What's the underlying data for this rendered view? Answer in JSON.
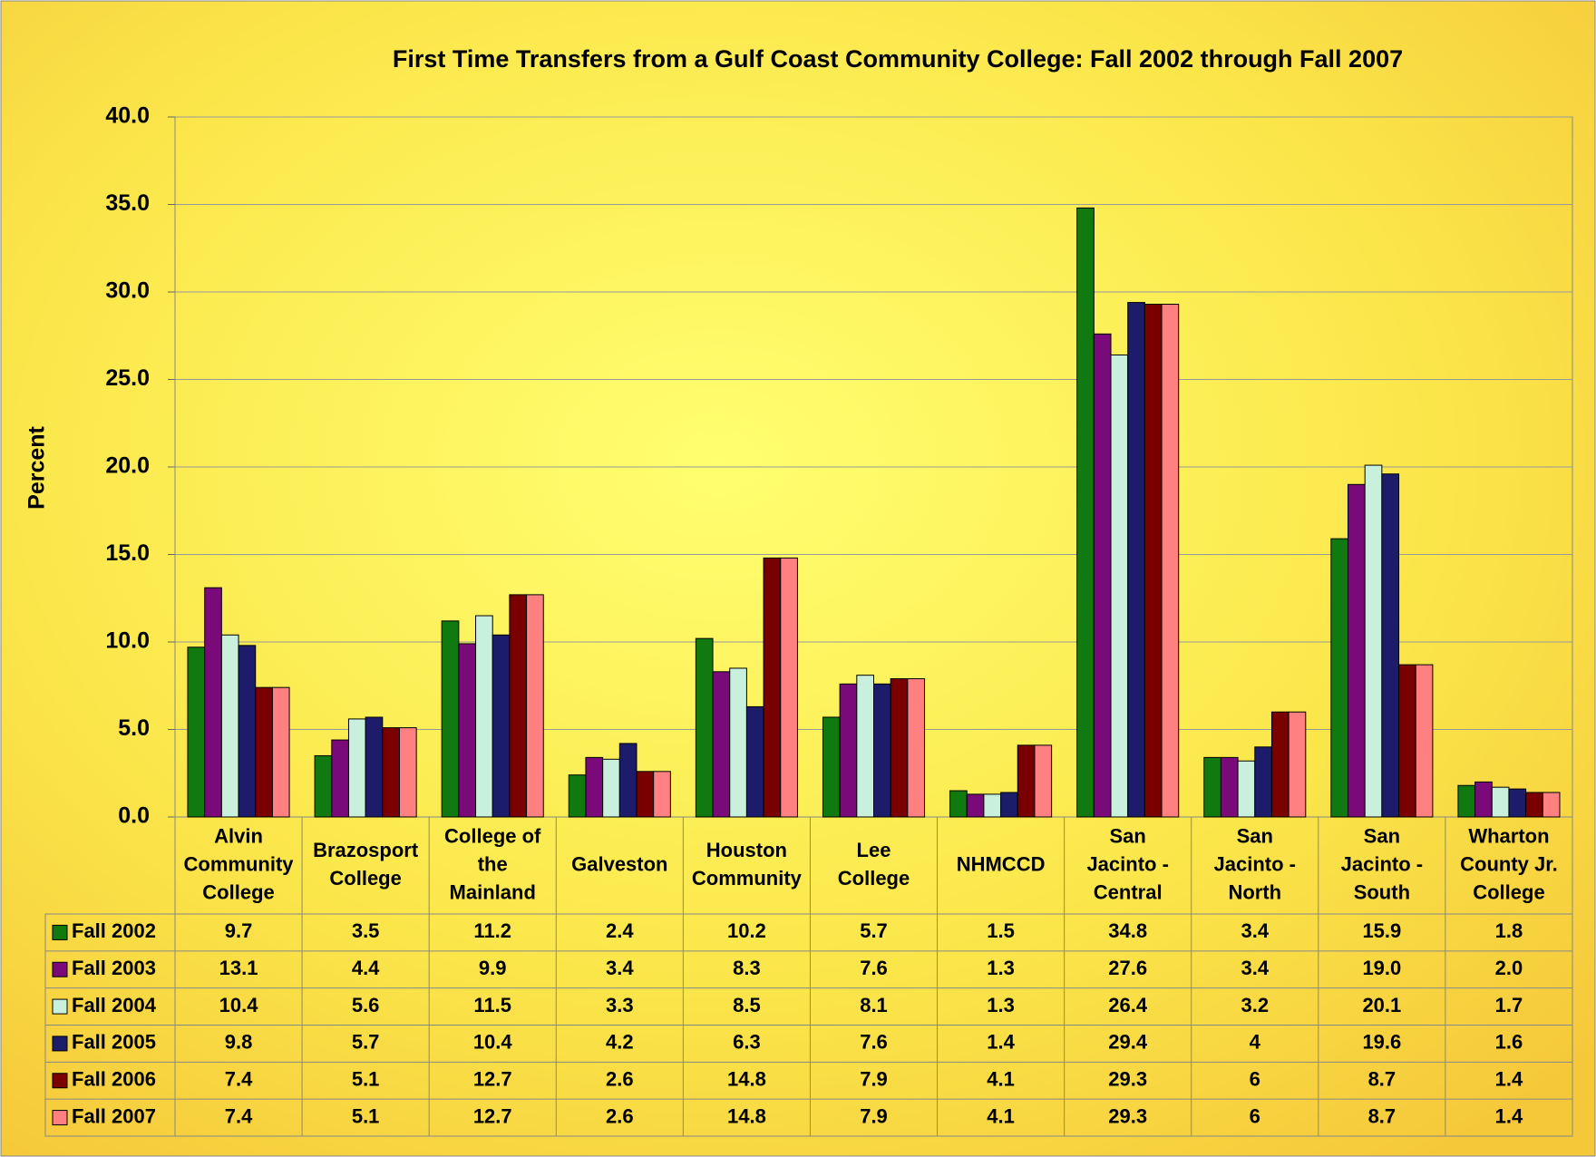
{
  "chart_data": {
    "type": "bar",
    "title": "First Time Transfers from a Gulf Coast Community College:   Fall 2002 through Fall 2007",
    "y_label": "Percent",
    "categories": [
      [
        "Alvin",
        "Community",
        "College"
      ],
      [
        "Brazosport",
        "College"
      ],
      [
        "College of",
        "the",
        "Mainland"
      ],
      [
        "Galveston"
      ],
      [
        "Houston",
        "Community"
      ],
      [
        "Lee",
        "College"
      ],
      [
        "NHMCCD"
      ],
      [
        "San",
        "Jacinto -",
        "Central"
      ],
      [
        "San",
        "Jacinto -",
        "North"
      ],
      [
        "San",
        "Jacinto -",
        "South"
      ],
      [
        "Wharton",
        "County Jr.",
        "College"
      ]
    ],
    "series": [
      {
        "name": "Fall 2002",
        "color": "#107a10",
        "values": [
          9.7,
          3.5,
          11.2,
          2.4,
          10.2,
          5.7,
          1.5,
          34.8,
          3.4,
          15.9,
          1.8
        ]
      },
      {
        "name": "Fall 2003",
        "color": "#7a0a7a",
        "values": [
          13.1,
          4.4,
          9.9,
          3.4,
          8.3,
          7.6,
          1.3,
          27.6,
          3.4,
          19.0,
          2.0
        ],
        "value_labels": [
          "13.1",
          "4.4",
          "9.9",
          "3.4",
          "8.3",
          "7.6",
          "1.3",
          "27.6",
          "3.4",
          "19.0",
          "2.0"
        ]
      },
      {
        "name": "Fall 2004",
        "color": "#c8f0dc",
        "values": [
          10.4,
          5.6,
          11.5,
          3.3,
          8.5,
          8.1,
          1.3,
          26.4,
          3.2,
          20.1,
          1.7
        ]
      },
      {
        "name": "Fall 2005",
        "color": "#1c1c6a",
        "values": [
          9.8,
          5.7,
          10.4,
          4.2,
          6.3,
          7.6,
          1.4,
          29.4,
          4.0,
          19.6,
          1.6
        ]
      },
      {
        "name": "Fall 2006",
        "color": "#7a0000",
        "values": [
          7.4,
          5.1,
          12.7,
          2.6,
          14.8,
          7.9,
          4.1,
          29.3,
          6.0,
          8.7,
          1.4
        ]
      },
      {
        "name": "Fall 2007",
        "color": "#ff8080",
        "values": [
          7.4,
          5.1,
          12.7,
          2.6,
          14.8,
          7.9,
          4.1,
          29.3,
          6.0,
          8.7,
          1.4
        ]
      }
    ],
    "ylim": [
      0,
      40
    ],
    "yticks": [
      {
        "value": 0,
        "label": "0.0"
      },
      {
        "value": 5,
        "label": "5.0"
      },
      {
        "value": 10,
        "label": "10.0"
      },
      {
        "value": 15,
        "label": "15.0"
      },
      {
        "value": 20,
        "label": "20.0"
      },
      {
        "value": 25,
        "label": "25.0"
      },
      {
        "value": 30,
        "label": "30.0"
      },
      {
        "value": 35,
        "label": "35.0"
      },
      {
        "value": 40,
        "label": "40.0"
      }
    ],
    "grid": true
  }
}
